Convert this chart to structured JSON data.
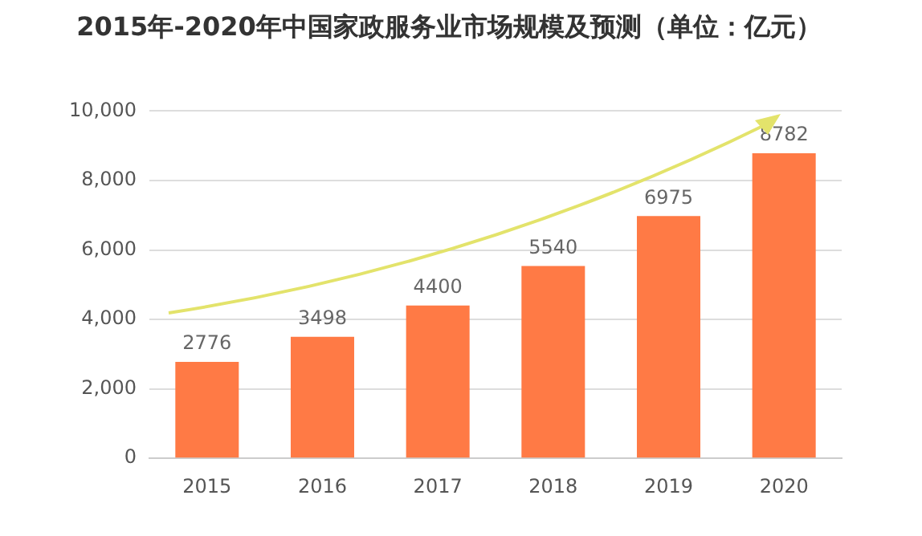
{
  "chart_data": {
    "type": "bar",
    "title": "2015年-2020年中国家政服务业市场规模及预测（单位：亿元）",
    "categories": [
      "2015",
      "2016",
      "2017",
      "2018",
      "2019",
      "2020"
    ],
    "values": [
      2776,
      3498,
      4400,
      5540,
      6975,
      8782
    ],
    "color": "#ff7a45",
    "ylim": [
      0,
      10000
    ],
    "yticks": [
      {
        "value": 0,
        "label": "0"
      },
      {
        "value": 2000,
        "label": "2,000"
      },
      {
        "value": 4000,
        "label": "4,000"
      },
      {
        "value": 6000,
        "label": "6,000"
      },
      {
        "value": 8000,
        "label": "8,000"
      },
      {
        "value": 10000,
        "label": "10,000"
      }
    ],
    "grid": "y",
    "data_labels": true,
    "legend": false
  }
}
